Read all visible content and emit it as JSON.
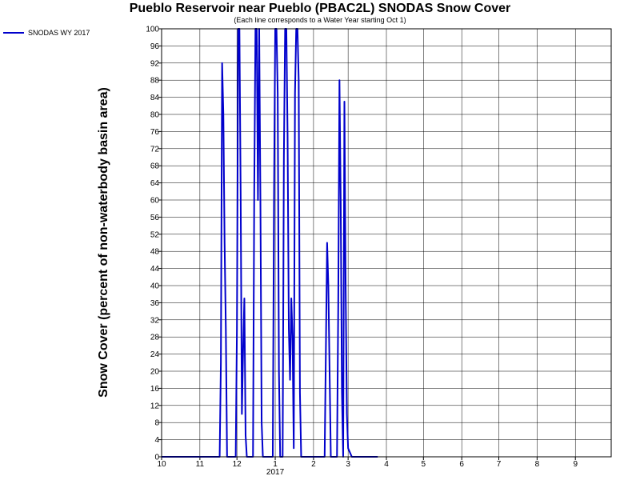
{
  "chart_data": {
    "type": "line",
    "title": "Pueblo Reservoir near Pueblo (PBAC2L) SNODAS Snow Cover",
    "subtitle": "(Each line corresponds to a Water Year starting Oct 1)",
    "ylabel": "Snow Cover (percent of non-waterbody basin area)",
    "xlabel": "",
    "ylim": [
      0,
      100
    ],
    "xlim": [
      "2016-10-01",
      "2017-09-30"
    ],
    "yticks": [
      "0",
      "4",
      "8",
      "12",
      "16",
      "20",
      "24",
      "28",
      "32",
      "36",
      "40",
      "44",
      "48",
      "52",
      "56",
      "60",
      "64",
      "68",
      "72",
      "76",
      "80",
      "84",
      "88",
      "92",
      "96",
      "100"
    ],
    "xticks": [
      {
        "label": "10",
        "date": "2016-10-01"
      },
      {
        "label": "11",
        "date": "2016-11-01"
      },
      {
        "label": "12",
        "date": "2016-12-01"
      },
      {
        "label": "1",
        "date": "2017-01-01"
      },
      {
        "label": "2",
        "date": "2017-02-01"
      },
      {
        "label": "3",
        "date": "2017-03-01"
      },
      {
        "label": "4",
        "date": "2017-04-01"
      },
      {
        "label": "5",
        "date": "2017-05-01"
      },
      {
        "label": "6",
        "date": "2017-06-01"
      },
      {
        "label": "7",
        "date": "2017-07-01"
      },
      {
        "label": "8",
        "date": "2017-08-01"
      },
      {
        "label": "9",
        "date": "2017-09-01"
      }
    ],
    "year_label": "2017",
    "grid": true,
    "legend_position": "top-left",
    "series": [
      {
        "name": "SNODAS WY 2017",
        "color": "#0000cc",
        "points": [
          [
            "2016-10-01",
            0
          ],
          [
            "2016-11-17",
            0
          ],
          [
            "2016-11-18",
            22
          ],
          [
            "2016-11-19",
            92
          ],
          [
            "2016-11-20",
            80
          ],
          [
            "2016-11-21",
            50
          ],
          [
            "2016-11-22",
            30
          ],
          [
            "2016-11-23",
            0
          ],
          [
            "2016-11-30",
            0
          ],
          [
            "2016-12-01",
            30
          ],
          [
            "2016-12-02",
            100
          ],
          [
            "2016-12-03",
            100
          ],
          [
            "2016-12-04",
            62
          ],
          [
            "2016-12-05",
            10
          ],
          [
            "2016-12-06",
            25
          ],
          [
            "2016-12-07",
            37
          ],
          [
            "2016-12-08",
            5
          ],
          [
            "2016-12-09",
            0
          ],
          [
            "2016-12-14",
            0
          ],
          [
            "2016-12-15",
            62
          ],
          [
            "2016-12-16",
            100
          ],
          [
            "2016-12-17",
            100
          ],
          [
            "2016-12-18",
            60
          ],
          [
            "2016-12-19",
            100
          ],
          [
            "2016-12-20",
            60
          ],
          [
            "2016-12-21",
            8
          ],
          [
            "2016-12-22",
            0
          ],
          [
            "2016-12-30",
            0
          ],
          [
            "2016-12-31",
            60
          ],
          [
            "2017-01-01",
            100
          ],
          [
            "2017-01-02",
            100
          ],
          [
            "2017-01-03",
            85
          ],
          [
            "2017-01-04",
            20
          ],
          [
            "2017-01-05",
            0
          ],
          [
            "2017-01-07",
            0
          ],
          [
            "2017-01-08",
            70
          ],
          [
            "2017-01-09",
            100
          ],
          [
            "2017-01-10",
            100
          ],
          [
            "2017-01-11",
            75
          ],
          [
            "2017-01-12",
            30
          ],
          [
            "2017-01-13",
            18
          ],
          [
            "2017-01-14",
            37
          ],
          [
            "2017-01-15",
            28
          ],
          [
            "2017-01-16",
            2
          ],
          [
            "2017-01-17",
            85
          ],
          [
            "2017-01-18",
            100
          ],
          [
            "2017-01-19",
            100
          ],
          [
            "2017-01-20",
            88
          ],
          [
            "2017-01-21",
            15
          ],
          [
            "2017-01-22",
            0
          ],
          [
            "2017-02-10",
            0
          ],
          [
            "2017-02-11",
            25
          ],
          [
            "2017-02-12",
            50
          ],
          [
            "2017-02-13",
            40
          ],
          [
            "2017-02-14",
            20
          ],
          [
            "2017-02-15",
            0
          ],
          [
            "2017-02-20",
            0
          ],
          [
            "2017-02-21",
            35
          ],
          [
            "2017-02-22",
            88
          ],
          [
            "2017-02-23",
            60
          ],
          [
            "2017-02-24",
            15
          ],
          [
            "2017-02-25",
            0
          ],
          [
            "2017-02-26",
            83
          ],
          [
            "2017-02-27",
            40
          ],
          [
            "2017-02-28",
            10
          ],
          [
            "2017-03-01",
            2
          ],
          [
            "2017-03-04",
            0
          ],
          [
            "2017-03-25",
            0
          ]
        ]
      }
    ]
  }
}
